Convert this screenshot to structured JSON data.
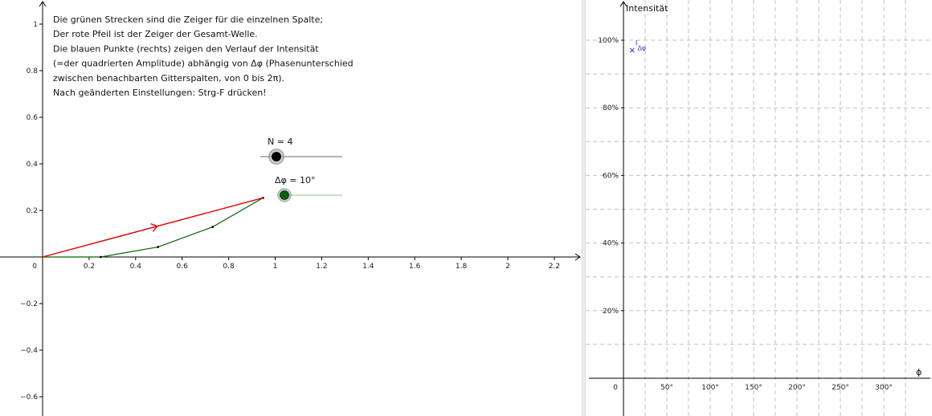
{
  "info_lines": [
    "Die grünen Strecken sind die Zeiger für die einzelnen Spalte;",
    "Der rote Pfeil ist der Zeiger der Gesamt-Welle.",
    "Die blauen Punkte (rechts) zeigen den Verlauf der Intensität",
    "(=der quadrierten Amplitude) abhängig von Δφ (Phasenunterschied",
    "zwischen benachbarten Gitterspalten, von 0 bis 2π).",
    "Nach geänderten Einstellungen: Strg-F drücken!"
  ],
  "sliders": {
    "n": {
      "label": "N = 4",
      "value": 4
    },
    "dphi": {
      "label": "Δφ = 10°",
      "value_deg": 10
    }
  },
  "colors": {
    "phasor": "#006400",
    "resultant": "#e00000",
    "intensity": "#3a3ad8",
    "grid": "#c0c0c0",
    "axis": "#000000"
  },
  "chart_data": [
    {
      "type": "line",
      "xlim": [
        0,
        2.3
      ],
      "ylim": [
        -0.66,
        1.1
      ],
      "x_ticks": [
        0,
        0.2,
        0.4,
        0.6,
        0.8,
        1,
        1.2,
        1.4,
        1.6,
        1.8,
        2,
        2.2
      ],
      "y_ticks": [
        -0.6,
        -0.4,
        -0.2,
        0.2,
        0.4,
        0.6,
        0.8,
        1
      ],
      "origin_label": "0",
      "phasor_points": [
        [
          0.25,
          0
        ],
        [
          0.496,
          0.043
        ],
        [
          0.731,
          0.129
        ],
        [
          0.948,
          0.254
        ]
      ],
      "resultant": {
        "from": [
          0,
          0
        ],
        "to": [
          0.948,
          0.254
        ]
      }
    },
    {
      "type": "scatter",
      "ylabel": "Intensität",
      "xlabel": "ϕ",
      "xlim": [
        -30,
        355
      ],
      "ylim": [
        -0.02,
        1.12
      ],
      "x_ticks": [
        0,
        50,
        100,
        150,
        200,
        250,
        300
      ],
      "x_tick_labels": [
        "0",
        "50°",
        "100°",
        "150°",
        "200°",
        "250°",
        "300°"
      ],
      "y_ticks": [
        0.2,
        0.4,
        0.6,
        0.8,
        1.0
      ],
      "y_tick_labels": [
        "20%",
        "40%",
        "60%",
        "80%",
        "100%"
      ],
      "grid": true,
      "points": [
        {
          "x": 10,
          "y": 0.97
        }
      ],
      "point_label": "IΔφ"
    }
  ]
}
